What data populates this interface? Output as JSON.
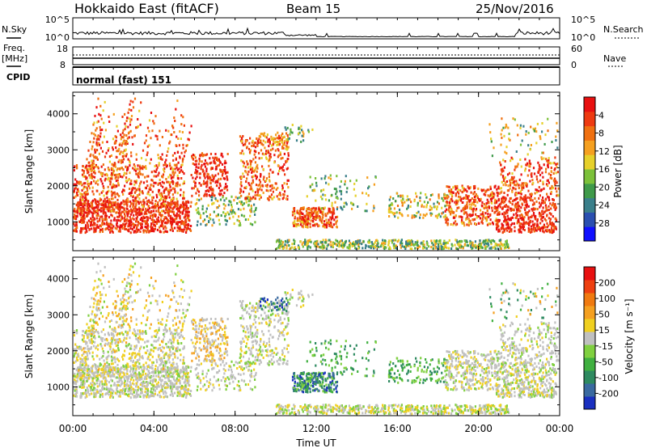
{
  "header": {
    "site": "Hokkaido East (fitACF)",
    "beam": "Beam 15",
    "date": "25/Nov/2016"
  },
  "nsky_panel": {
    "left_label": "N.Sky",
    "right_label": "N.Search",
    "left_ticks": [
      "10^5",
      "10^0"
    ],
    "right_ticks": [
      "10^5",
      "10^0"
    ]
  },
  "freq_panel": {
    "left_label_1": "Freq.",
    "left_label_2": "[MHz]",
    "right_label": "Nave",
    "left_ticks": [
      "18",
      "8"
    ],
    "right_ticks": [
      "60",
      "0"
    ]
  },
  "cpid_panel": {
    "label": "CPID",
    "text": "normal (fast) 151"
  },
  "chart_data": [
    {
      "type": "heatmap",
      "name": "power",
      "ylabel": "Slant Range [km]",
      "yticks": [
        "1000",
        "2000",
        "3000",
        "4000"
      ],
      "ylim": [
        200,
        4600
      ],
      "xlim": [
        0,
        24
      ],
      "colorbar": {
        "label": "Power [dB]",
        "ticks": [
          "4",
          "8",
          "12",
          "16",
          "20",
          "24",
          "28"
        ],
        "range": [
          0,
          32
        ],
        "colors": [
          "#1010ff",
          "#2a4fb0",
          "#3a7f8a",
          "#3f9a4a",
          "#7cc13a",
          "#e6d02a",
          "#f5a020",
          "#f07010",
          "#ee3a10",
          "#e81010"
        ]
      }
    },
    {
      "type": "heatmap",
      "name": "velocity",
      "ylabel": "Slant Range [km]",
      "yticks": [
        "1000",
        "2000",
        "3000",
        "4000"
      ],
      "ylim": [
        200,
        4600
      ],
      "xlim": [
        0,
        24
      ],
      "colorbar": {
        "label": "Velocity [m s⁻¹]",
        "ticks": [
          "200",
          "100",
          "50",
          "15",
          "-15",
          "-50",
          "-100",
          "-200"
        ],
        "colors": [
          "#1a30c0",
          "#3a6aa0",
          "#2e8a60",
          "#40b040",
          "#80d040",
          "#c0c0c0",
          "#f0d020",
          "#f5a020",
          "#f07a10",
          "#ee4010",
          "#e81010"
        ]
      }
    }
  ],
  "xaxis": {
    "ticks": [
      "00:00",
      "04:00",
      "08:00",
      "12:00",
      "16:00",
      "20:00",
      "00:00"
    ],
    "label": "Time UT"
  }
}
